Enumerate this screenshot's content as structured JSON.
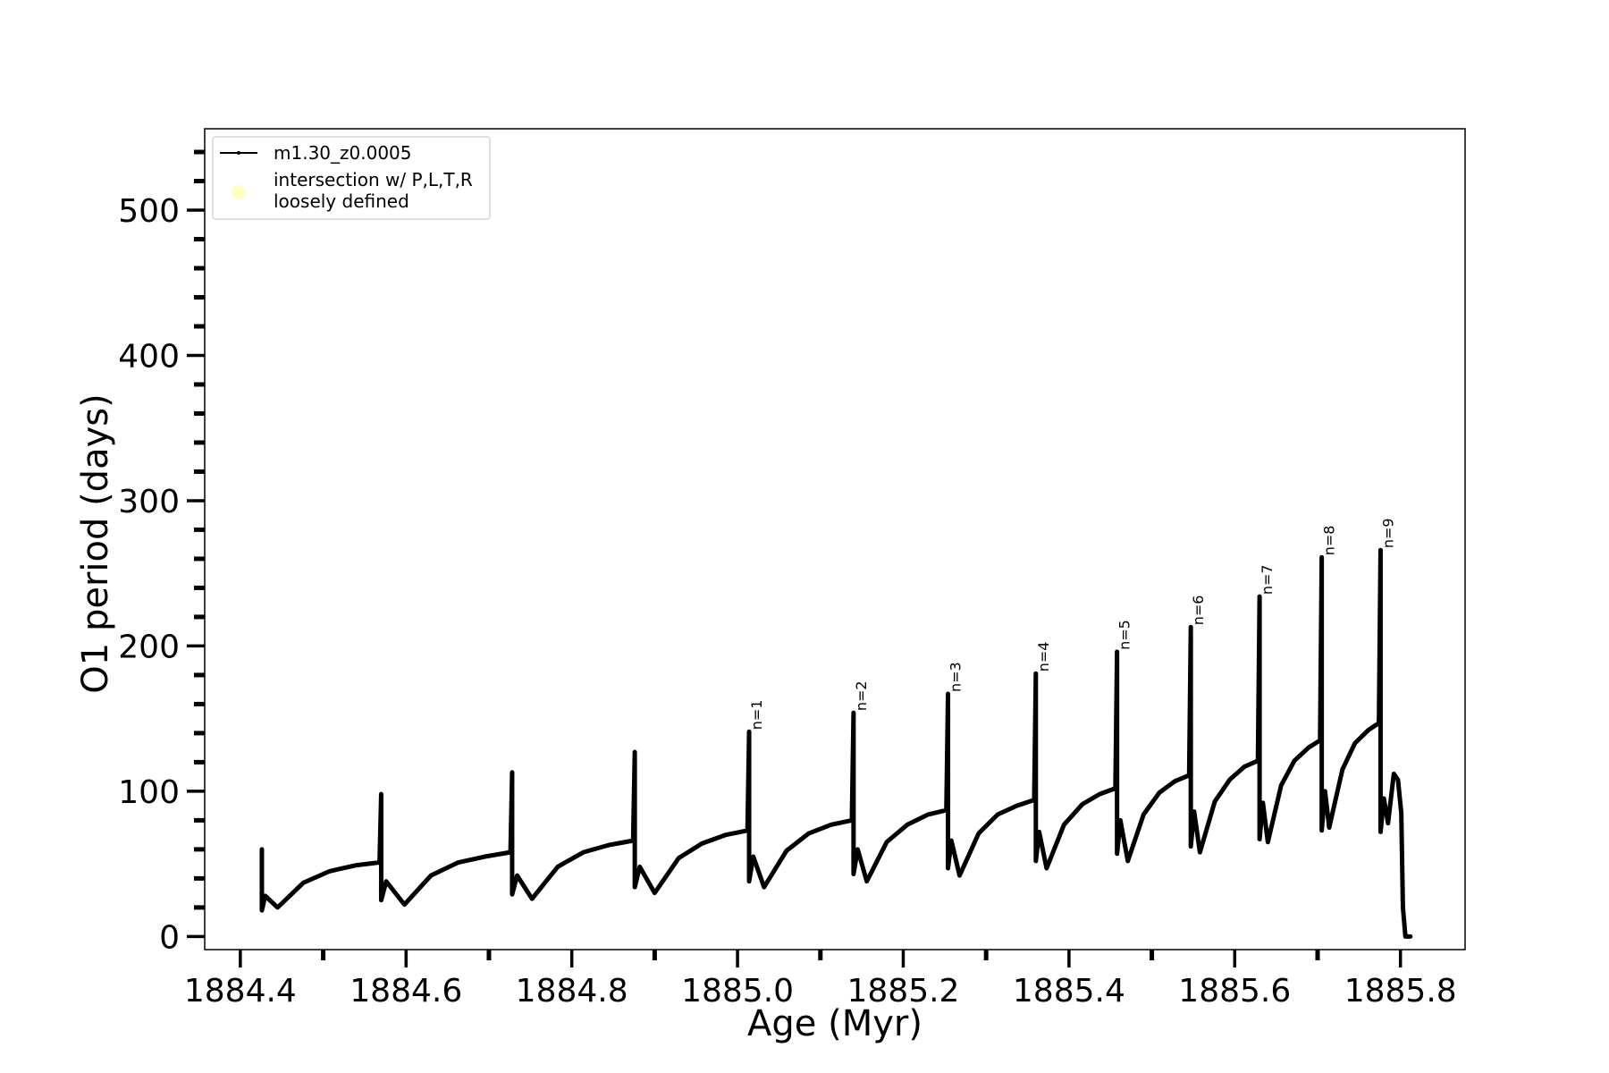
{
  "chart_data": {
    "type": "line",
    "xlabel": "Age (Myr)",
    "ylabel": "O1 period (days)",
    "xlim": [
      1884.357,
      1885.878
    ],
    "ylim": [
      -9,
      556
    ],
    "xticks": [
      {
        "value": 1884.4,
        "label": "1884.4"
      },
      {
        "value": 1884.6,
        "label": "1884.6"
      },
      {
        "value": 1884.8,
        "label": "1884.8"
      },
      {
        "value": 1885.0,
        "label": "1885.0"
      },
      {
        "value": 1885.2,
        "label": "1885.2"
      },
      {
        "value": 1885.4,
        "label": "1885.4"
      },
      {
        "value": 1885.6,
        "label": "1885.6"
      },
      {
        "value": 1885.8,
        "label": "1885.8"
      }
    ],
    "xminorticks": [
      1884.5,
      1884.7,
      1884.9,
      1885.1,
      1885.3,
      1885.5,
      1885.7
    ],
    "yticks": [
      0,
      100,
      200,
      300,
      400,
      500
    ],
    "yminorticks": [
      20,
      40,
      60,
      80,
      120,
      140,
      160,
      180,
      220,
      240,
      260,
      280,
      320,
      340,
      360,
      380,
      420,
      440,
      460,
      480,
      520,
      540
    ],
    "legend": "upper left",
    "series": [
      {
        "name": "m1.30_z0.0005",
        "color": "#000000",
        "x": [
          1884.426,
          1884.426,
          1884.426,
          1884.43,
          1884.445,
          1884.476,
          1884.508,
          1884.539,
          1884.568,
          1884.57,
          1884.57,
          1884.576,
          1884.598,
          1884.63,
          1884.663,
          1884.695,
          1884.726,
          1884.728,
          1884.728,
          1884.734,
          1884.752,
          1884.783,
          1884.814,
          1884.845,
          1884.874,
          1884.876,
          1884.876,
          1884.882,
          1884.9,
          1884.929,
          1884.957,
          1884.986,
          1885.012,
          1885.014,
          1885.014,
          1885.019,
          1885.032,
          1885.059,
          1885.086,
          1885.113,
          1885.138,
          1885.14,
          1885.14,
          1885.145,
          1885.156,
          1885.18,
          1885.205,
          1885.23,
          1885.252,
          1885.254,
          1885.254,
          1885.258,
          1885.268,
          1885.291,
          1885.314,
          1885.337,
          1885.358,
          1885.36,
          1885.36,
          1885.364,
          1885.373,
          1885.394,
          1885.416,
          1885.437,
          1885.456,
          1885.458,
          1885.458,
          1885.462,
          1885.471,
          1885.49,
          1885.509,
          1885.528,
          1885.545,
          1885.547,
          1885.547,
          1885.551,
          1885.558,
          1885.576,
          1885.594,
          1885.612,
          1885.628,
          1885.63,
          1885.63,
          1885.634,
          1885.64,
          1885.656,
          1885.672,
          1885.689,
          1885.703,
          1885.705,
          1885.705,
          1885.709,
          1885.714,
          1885.73,
          1885.745,
          1885.761,
          1885.774,
          1885.776,
          1885.776,
          1885.78,
          1885.785,
          1885.792,
          1885.797,
          1885.801,
          1885.803,
          1885.806,
          1885.812
        ],
        "values": [
          35,
          60,
          18,
          28,
          20,
          37,
          45,
          49,
          51,
          98,
          25,
          38,
          22,
          42,
          51,
          55,
          58,
          113,
          29,
          42,
          26,
          48,
          58,
          63,
          66,
          127,
          34,
          48,
          30,
          54,
          64,
          70,
          73,
          141,
          38,
          55,
          34,
          59,
          71,
          77,
          80,
          154,
          43,
          60,
          38,
          65,
          77,
          84,
          87,
          167,
          47,
          66,
          42,
          71,
          84,
          90,
          94,
          181,
          52,
          72,
          47,
          77,
          91,
          98,
          102,
          196,
          57,
          80,
          52,
          84,
          99,
          107,
          111,
          213,
          62,
          86,
          58,
          93,
          108,
          117,
          121,
          234,
          67,
          92,
          65,
          104,
          121,
          130,
          135,
          261,
          73,
          100,
          75,
          115,
          133,
          142,
          147,
          266,
          72,
          95,
          78,
          112,
          108,
          85,
          20,
          0,
          0
        ]
      },
      {
        "name": "intersection w/ P,L,T,R\nloosely defined",
        "color": "#ffffc0",
        "x": [],
        "values": []
      }
    ],
    "annotations": [
      {
        "text": "n=1",
        "x": 1885.014,
        "y": 141
      },
      {
        "text": "n=2",
        "x": 1885.14,
        "y": 154
      },
      {
        "text": "n=3",
        "x": 1885.254,
        "y": 167
      },
      {
        "text": "n=4",
        "x": 1885.36,
        "y": 181
      },
      {
        "text": "n=5",
        "x": 1885.458,
        "y": 196
      },
      {
        "text": "n=6",
        "x": 1885.547,
        "y": 213
      },
      {
        "text": "n=7",
        "x": 1885.63,
        "y": 234
      },
      {
        "text": "n=8",
        "x": 1885.705,
        "y": 261
      },
      {
        "text": "n=9",
        "x": 1885.776,
        "y": 266
      }
    ]
  }
}
